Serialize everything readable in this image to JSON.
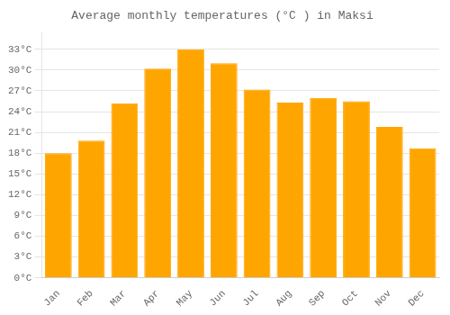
{
  "chart_data": {
    "type": "bar",
    "title": "Average monthly temperatures (°C ) in Maksi",
    "categories": [
      "Jan",
      "Feb",
      "Mar",
      "Apr",
      "May",
      "Jun",
      "Jul",
      "Aug",
      "Sep",
      "Oct",
      "Nov",
      "Dec"
    ],
    "values": [
      18.0,
      19.8,
      25.2,
      30.2,
      33.0,
      31.0,
      27.2,
      25.3,
      26.0,
      25.5,
      21.8,
      18.7
    ],
    "color": "#FFA500",
    "ylim": [
      0,
      35.5
    ],
    "yticks": [
      {
        "value": 0,
        "label": "0°C"
      },
      {
        "value": 3,
        "label": "3°C"
      },
      {
        "value": 6,
        "label": "6°C"
      },
      {
        "value": 9,
        "label": "9°C"
      },
      {
        "value": 12,
        "label": "12°C"
      },
      {
        "value": 15,
        "label": "15°C"
      },
      {
        "value": 18,
        "label": "18°C"
      },
      {
        "value": 21,
        "label": "21°C"
      },
      {
        "value": 24,
        "label": "24°C"
      },
      {
        "value": 27,
        "label": "27°C"
      },
      {
        "value": 30,
        "label": "30°C"
      },
      {
        "value": 33,
        "label": "33°C"
      }
    ],
    "grid": true
  }
}
